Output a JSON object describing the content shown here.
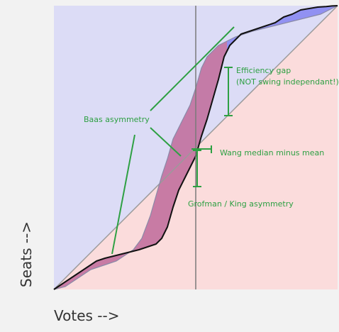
{
  "chart_data": {
    "type": "area",
    "xlabel": "Votes -->",
    "ylabel": "Seats -->",
    "xlim": [
      0,
      1
    ],
    "ylim": [
      0,
      1
    ],
    "median_vote_line": 0.5,
    "seats_votes_curve": {
      "x": [
        0.0,
        0.03,
        0.06,
        0.09,
        0.12,
        0.15,
        0.18,
        0.22,
        0.26,
        0.3,
        0.33,
        0.36,
        0.38,
        0.4,
        0.42,
        0.44,
        0.46,
        0.48,
        0.5,
        0.52,
        0.54,
        0.56,
        0.58,
        0.6,
        0.62,
        0.64,
        0.66,
        0.69,
        0.72,
        0.75,
        0.78,
        0.81,
        0.84,
        0.87,
        0.9,
        0.93,
        0.96,
        0.98,
        1.0
      ],
      "y": [
        0.0,
        0.02,
        0.04,
        0.06,
        0.08,
        0.1,
        0.11,
        0.12,
        0.13,
        0.14,
        0.15,
        0.16,
        0.18,
        0.22,
        0.29,
        0.35,
        0.39,
        0.43,
        0.47,
        0.54,
        0.6,
        0.67,
        0.74,
        0.82,
        0.86,
        0.88,
        0.9,
        0.91,
        0.92,
        0.93,
        0.94,
        0.96,
        0.97,
        0.985,
        0.99,
        0.995,
        0.997,
        0.999,
        1.0
      ]
    },
    "inverted_curve_reference": {
      "x": [
        0.0,
        0.04,
        0.07,
        0.1,
        0.13,
        0.16,
        0.19,
        0.22,
        0.25,
        0.28,
        0.31,
        0.34,
        0.36,
        0.38,
        0.4,
        0.42,
        0.44,
        0.46,
        0.48,
        0.5,
        0.52,
        0.54,
        0.56,
        0.58,
        0.6,
        0.62,
        0.64,
        0.67,
        0.7,
        0.74,
        0.78,
        0.82,
        0.86,
        0.9,
        0.94,
        0.97,
        1.0
      ],
      "y": [
        0.0,
        0.01,
        0.03,
        0.05,
        0.07,
        0.08,
        0.09,
        0.1,
        0.12,
        0.14,
        0.18,
        0.26,
        0.33,
        0.4,
        0.46,
        0.53,
        0.57,
        0.61,
        0.65,
        0.71,
        0.78,
        0.82,
        0.84,
        0.86,
        0.87,
        0.88,
        0.89,
        0.9,
        0.91,
        0.92,
        0.93,
        0.94,
        0.95,
        0.96,
        0.97,
        0.985,
        1.0
      ]
    },
    "region_colors": {
      "background_above_diagonal": "#dcdcf6",
      "background_below_diagonal": "#fbdcdc",
      "asymmetry_blue": "#7878f0",
      "asymmetry_light_blue": "#b4b4f0",
      "asymmetry_pink": "#f4a8a8",
      "asymmetry_red": "#ee6a6a",
      "curve": "#111111",
      "diagonal": "#9a9a9a",
      "median_line": "#7a7a7a",
      "annotation": "#2ea043"
    },
    "annotations": [
      {
        "id": "baas",
        "text": "Baas asymmetry"
      },
      {
        "id": "efficiency_gap",
        "lines": [
          "Efficiency gap",
          "(NOT swing independant!)"
        ]
      },
      {
        "id": "wang",
        "text": "Wang median minus mean"
      },
      {
        "id": "grofman",
        "text": "Grofman / King asymmetry"
      }
    ]
  }
}
